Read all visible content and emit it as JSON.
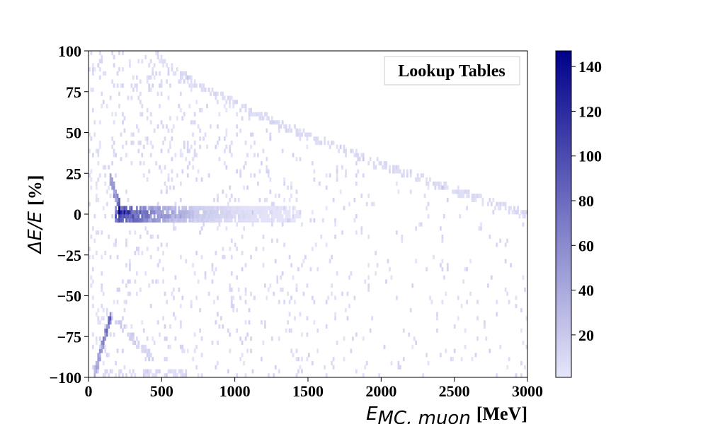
{
  "chart_data": {
    "type": "heatmap",
    "title": "",
    "legend_label": "Lookup Tables",
    "legend_position": "top-right",
    "xlabel_main": "E",
    "xlabel_sub": "MC, muon",
    "xlabel_unit": "[MeV]",
    "ylabel_main": "ΔE/E",
    "ylabel_unit": "[%]",
    "xlim": [
      0,
      3000
    ],
    "ylim": [
      -100,
      100
    ],
    "xticks": [
      0,
      500,
      1000,
      1500,
      2000,
      2500,
      3000
    ],
    "yticks": [
      -100,
      -75,
      -50,
      -25,
      0,
      25,
      50,
      75,
      100
    ],
    "xtick_labels": [
      "0",
      "500",
      "1000",
      "1500",
      "2000",
      "2500",
      "3000"
    ],
    "ytick_labels": [
      "−100",
      "−75",
      "−50",
      "−25",
      "0",
      "25",
      "50",
      "75",
      "100"
    ],
    "colorbar": {
      "min": 1,
      "max": 147,
      "ticks": [
        20,
        40,
        60,
        80,
        100,
        120,
        140
      ],
      "tick_labels": [
        "20",
        "40",
        "60",
        "80",
        "100",
        "120",
        "140"
      ],
      "color_low": "#e6e6fa",
      "color_high": "#00008b"
    },
    "grid": false,
    "features": {
      "main_band": {
        "x_start": 180,
        "x_end": 1450,
        "y_center": 0,
        "y_halfwidth": 6,
        "peak_x": 230,
        "peak_count": 145
      },
      "ridge_upper": {
        "x": [
          140,
          220
        ],
        "y": [
          25,
          2
        ],
        "peak_count": 90
      },
      "ridge_lower": {
        "x": [
          40,
          160
        ],
        "y": [
          -98,
          -60
        ],
        "peak_count": 110
      },
      "kinematic_edge": {
        "x_start": 450,
        "y_start": 100,
        "x_end": 3000,
        "y_end": 0
      },
      "bottom_band": {
        "x_start": 100,
        "x_end": 700,
        "y": -98
      }
    }
  }
}
